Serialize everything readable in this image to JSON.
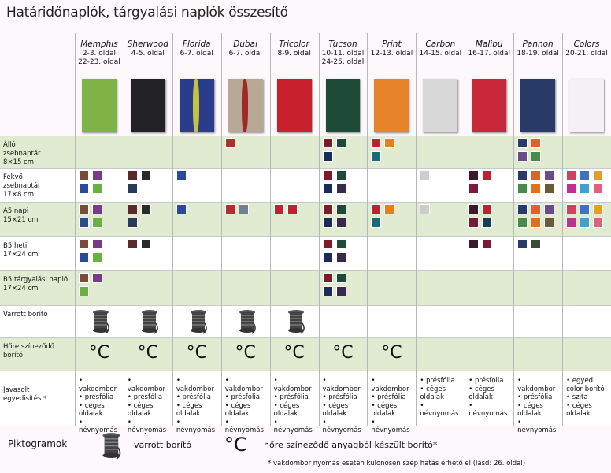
{
  "title": "Határidőnaplók, tárgyalási naplók összesítő",
  "columns": [
    {
      "name": "Memphis",
      "pages": [
        "2-3. oldal",
        "22-23. oldal"
      ]
    },
    {
      "name": "Sherwood",
      "pages": [
        "4-5. oldal"
      ]
    },
    {
      "name": "Florida",
      "pages": [
        "6-7. oldal"
      ]
    },
    {
      "name": "Dubai",
      "pages": [
        "6-7. oldal"
      ]
    },
    {
      "name": "Tricolor",
      "pages": [
        "8-9. oldal"
      ]
    },
    {
      "name": "Tucson",
      "pages": [
        "10-11. oldal",
        "24-25. oldal"
      ]
    },
    {
      "name": "Print",
      "pages": [
        "12-13. oldal"
      ]
    },
    {
      "name": "Carbon",
      "pages": [
        "14-15. oldal"
      ]
    },
    {
      "name": "Malibu",
      "pages": [
        "16-17. oldal"
      ]
    },
    {
      "name": "Pannon",
      "pages": [
        "18-19. oldal"
      ]
    },
    {
      "name": "Colors",
      "pages": [
        "20-21. oldal"
      ]
    }
  ],
  "rows": [
    {
      "label": [
        "Álló",
        "zsebnaptár",
        "8×15 cm"
      ]
    },
    {
      "label": [
        "Fekvő",
        "zsebnaptár",
        "17×8 cm"
      ]
    },
    {
      "label": [
        "A5 napi",
        "15×21 cm"
      ]
    },
    {
      "label": [
        "B5 heti",
        "17×24 cm"
      ]
    },
    {
      "label": [
        "B5 tárgyalási napló",
        "17×24 cm"
      ]
    },
    {
      "label": [
        "Varrott borító"
      ]
    },
    {
      "label": [
        "Hőre színeződő",
        "borító"
      ]
    },
    {
      "label": [
        "Javasolt",
        "egyedisítés *"
      ]
    }
  ],
  "customization": [
    [
      "vakdombor",
      "présfólia",
      "céges oldalak",
      "névnyomás"
    ],
    [
      "vakdombor",
      "présfólia",
      "céges oldalak",
      "névnyomás"
    ],
    [
      "vakdombor",
      "présfólia",
      "céges oldalak",
      "névnyomás"
    ],
    [
      "vakdombor",
      "présfólia",
      "céges oldalak",
      "névnyomás"
    ],
    [
      "vakdombor",
      "présfólia",
      "céges oldalak",
      "névnyomás"
    ],
    [
      "vakdombor",
      "présfólia",
      "céges oldalak",
      "névnyomás"
    ],
    [
      "vakdombor",
      "présfólia",
      "céges oldalak",
      "névnyomás"
    ],
    [
      "présfólia",
      "céges oldalak",
      "névnyomás"
    ],
    [
      "présfólia",
      "céges oldalak",
      "névnyomás"
    ],
    [
      "vakdombor",
      "présfólia",
      "céges oldalak",
      "névnyomás"
    ],
    [
      "egyedi color borító",
      "szita",
      "céges oldalak"
    ]
  ],
  "pictograms": {
    "title": "Piktogramok",
    "sewn": "varrott borító",
    "thermo": "hőre színeződő anyagból készült borító*",
    "celsius": "°C"
  },
  "footnote": "* vakdombor nyomás esetén különösen szép hatás érhető el (lásd: 26. oldal)"
}
